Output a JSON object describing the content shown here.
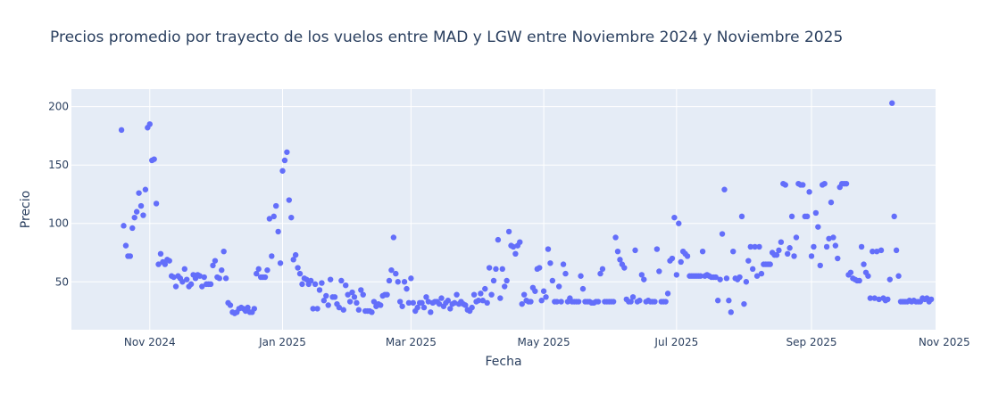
{
  "chart_data": {
    "type": "scatter",
    "title": "Precios promedio por trayecto de los vuelos entre MAD y LGW entre Noviembre 2024 y Noviembre 2025",
    "xlabel": "Fecha",
    "ylabel": "Precio",
    "xlim": [
      "2024-09-26",
      "2025-10-28"
    ],
    "ylim": [
      9,
      215
    ],
    "grid": true,
    "x_ticks": [
      {
        "date": "2024-11-01",
        "label": "Nov 2024"
      },
      {
        "date": "2025-01-01",
        "label": "Jan 2025"
      },
      {
        "date": "2025-03-01",
        "label": "Mar 2025"
      },
      {
        "date": "2025-05-01",
        "label": "May 2025"
      },
      {
        "date": "2025-07-01",
        "label": "Jul 2025"
      },
      {
        "date": "2025-09-01",
        "label": "Sep 2025"
      },
      {
        "date": "2025-11-01",
        "label": "Nov 2025"
      }
    ],
    "y_ticks": [
      50,
      100,
      150,
      200
    ],
    "marker_color": "#636efa",
    "points": [
      [
        "2024-10-19",
        180
      ],
      [
        "2024-10-20",
        98
      ],
      [
        "2024-10-21",
        81
      ],
      [
        "2024-10-22",
        72
      ],
      [
        "2024-10-23",
        72
      ],
      [
        "2024-10-24",
        96
      ],
      [
        "2024-10-25",
        105
      ],
      [
        "2024-10-26",
        110
      ],
      [
        "2024-10-27",
        126
      ],
      [
        "2024-10-28",
        115
      ],
      [
        "2024-10-29",
        107
      ],
      [
        "2024-10-30",
        129
      ],
      [
        "2024-10-31",
        182
      ],
      [
        "2024-11-01",
        185
      ],
      [
        "2024-11-02",
        154
      ],
      [
        "2024-11-03",
        155
      ],
      [
        "2024-11-04",
        117
      ],
      [
        "2024-11-05",
        65
      ],
      [
        "2024-11-06",
        74
      ],
      [
        "2024-11-07",
        67
      ],
      [
        "2024-11-08",
        65
      ],
      [
        "2024-11-09",
        69
      ],
      [
        "2024-11-10",
        68
      ],
      [
        "2024-11-11",
        55
      ],
      [
        "2024-11-12",
        54
      ],
      [
        "2024-11-13",
        46
      ],
      [
        "2024-11-14",
        55
      ],
      [
        "2024-11-15",
        53
      ],
      [
        "2024-11-16",
        50
      ],
      [
        "2024-11-17",
        61
      ],
      [
        "2024-11-18",
        52
      ],
      [
        "2024-11-19",
        46
      ],
      [
        "2024-11-20",
        48
      ],
      [
        "2024-11-21",
        56
      ],
      [
        "2024-11-22",
        53
      ],
      [
        "2024-11-23",
        56
      ],
      [
        "2024-11-24",
        55
      ],
      [
        "2024-11-25",
        46
      ],
      [
        "2024-11-26",
        54
      ],
      [
        "2024-11-27",
        48
      ],
      [
        "2024-11-28",
        48
      ],
      [
        "2024-11-29",
        48
      ],
      [
        "2024-11-30",
        64
      ],
      [
        "2024-12-01",
        68
      ],
      [
        "2024-12-02",
        54
      ],
      [
        "2024-12-03",
        53
      ],
      [
        "2024-12-04",
        60
      ],
      [
        "2024-12-05",
        76
      ],
      [
        "2024-12-06",
        53
      ],
      [
        "2024-12-07",
        32
      ],
      [
        "2024-12-08",
        30
      ],
      [
        "2024-12-09",
        24
      ],
      [
        "2024-12-10",
        23
      ],
      [
        "2024-12-11",
        24
      ],
      [
        "2024-12-12",
        27
      ],
      [
        "2024-12-13",
        28
      ],
      [
        "2024-12-14",
        27
      ],
      [
        "2024-12-15",
        25
      ],
      [
        "2024-12-16",
        28
      ],
      [
        "2024-12-17",
        24
      ],
      [
        "2024-12-18",
        24
      ],
      [
        "2024-12-19",
        27
      ],
      [
        "2024-12-20",
        57
      ],
      [
        "2024-12-21",
        61
      ],
      [
        "2024-12-22",
        54
      ],
      [
        "2024-12-23",
        54
      ],
      [
        "2024-12-24",
        54
      ],
      [
        "2024-12-25",
        60
      ],
      [
        "2024-12-26",
        104
      ],
      [
        "2024-12-27",
        72
      ],
      [
        "2024-12-28",
        106
      ],
      [
        "2024-12-29",
        115
      ],
      [
        "2024-12-30",
        93
      ],
      [
        "2024-12-31",
        66
      ],
      [
        "2025-01-01",
        145
      ],
      [
        "2025-01-02",
        154
      ],
      [
        "2025-01-03",
        161
      ],
      [
        "2025-01-04",
        120
      ],
      [
        "2025-01-05",
        105
      ],
      [
        "2025-01-06",
        69
      ],
      [
        "2025-01-07",
        73
      ],
      [
        "2025-01-08",
        62
      ],
      [
        "2025-01-09",
        57
      ],
      [
        "2025-01-10",
        48
      ],
      [
        "2025-01-11",
        53
      ],
      [
        "2025-01-12",
        52
      ],
      [
        "2025-01-13",
        48
      ],
      [
        "2025-01-14",
        51
      ],
      [
        "2025-01-15",
        27
      ],
      [
        "2025-01-16",
        48
      ],
      [
        "2025-01-17",
        27
      ],
      [
        "2025-01-18",
        43
      ],
      [
        "2025-01-19",
        49
      ],
      [
        "2025-01-20",
        34
      ],
      [
        "2025-01-21",
        38
      ],
      [
        "2025-01-22",
        30
      ],
      [
        "2025-01-23",
        52
      ],
      [
        "2025-01-24",
        37
      ],
      [
        "2025-01-25",
        37
      ],
      [
        "2025-01-26",
        31
      ],
      [
        "2025-01-27",
        28
      ],
      [
        "2025-01-28",
        51
      ],
      [
        "2025-01-29",
        26
      ],
      [
        "2025-01-30",
        47
      ],
      [
        "2025-01-31",
        39
      ],
      [
        "2025-02-01",
        33
      ],
      [
        "2025-02-02",
        41
      ],
      [
        "2025-02-03",
        37
      ],
      [
        "2025-02-04",
        32
      ],
      [
        "2025-02-05",
        26
      ],
      [
        "2025-02-06",
        43
      ],
      [
        "2025-02-07",
        39
      ],
      [
        "2025-02-08",
        25
      ],
      [
        "2025-02-09",
        25
      ],
      [
        "2025-02-10",
        25
      ],
      [
        "2025-02-11",
        24
      ],
      [
        "2025-02-12",
        33
      ],
      [
        "2025-02-13",
        29
      ],
      [
        "2025-02-14",
        31
      ],
      [
        "2025-02-15",
        30
      ],
      [
        "2025-02-16",
        38
      ],
      [
        "2025-02-17",
        39
      ],
      [
        "2025-02-18",
        39
      ],
      [
        "2025-02-19",
        51
      ],
      [
        "2025-02-20",
        60
      ],
      [
        "2025-02-21",
        88
      ],
      [
        "2025-02-22",
        57
      ],
      [
        "2025-02-23",
        50
      ],
      [
        "2025-02-24",
        33
      ],
      [
        "2025-02-25",
        29
      ],
      [
        "2025-02-26",
        50
      ],
      [
        "2025-02-27",
        44
      ],
      [
        "2025-02-28",
        32
      ],
      [
        "2025-03-01",
        53
      ],
      [
        "2025-03-02",
        32
      ],
      [
        "2025-03-03",
        25
      ],
      [
        "2025-03-04",
        28
      ],
      [
        "2025-03-05",
        32
      ],
      [
        "2025-03-06",
        32
      ],
      [
        "2025-03-07",
        28
      ],
      [
        "2025-03-08",
        37
      ],
      [
        "2025-03-09",
        33
      ],
      [
        "2025-03-10",
        24
      ],
      [
        "2025-03-11",
        32
      ],
      [
        "2025-03-12",
        33
      ],
      [
        "2025-03-13",
        33
      ],
      [
        "2025-03-14",
        31
      ],
      [
        "2025-03-15",
        36
      ],
      [
        "2025-03-16",
        29
      ],
      [
        "2025-03-17",
        32
      ],
      [
        "2025-03-18",
        34
      ],
      [
        "2025-03-19",
        27
      ],
      [
        "2025-03-20",
        31
      ],
      [
        "2025-03-21",
        32
      ],
      [
        "2025-03-22",
        39
      ],
      [
        "2025-03-23",
        31
      ],
      [
        "2025-03-24",
        33
      ],
      [
        "2025-03-25",
        31
      ],
      [
        "2025-03-26",
        30
      ],
      [
        "2025-03-27",
        26
      ],
      [
        "2025-03-28",
        25
      ],
      [
        "2025-03-29",
        28
      ],
      [
        "2025-03-30",
        39
      ],
      [
        "2025-03-31",
        33
      ],
      [
        "2025-04-01",
        34
      ],
      [
        "2025-04-02",
        40
      ],
      [
        "2025-04-03",
        34
      ],
      [
        "2025-04-04",
        44
      ],
      [
        "2025-04-05",
        32
      ],
      [
        "2025-04-06",
        62
      ],
      [
        "2025-04-07",
        39
      ],
      [
        "2025-04-08",
        51
      ],
      [
        "2025-04-09",
        61
      ],
      [
        "2025-04-10",
        86
      ],
      [
        "2025-04-11",
        36
      ],
      [
        "2025-04-12",
        61
      ],
      [
        "2025-04-13",
        46
      ],
      [
        "2025-04-14",
        51
      ],
      [
        "2025-04-15",
        93
      ],
      [
        "2025-04-16",
        81
      ],
      [
        "2025-04-17",
        80
      ],
      [
        "2025-04-18",
        74
      ],
      [
        "2025-04-19",
        81
      ],
      [
        "2025-04-20",
        84
      ],
      [
        "2025-04-21",
        31
      ],
      [
        "2025-04-22",
        39
      ],
      [
        "2025-04-23",
        34
      ],
      [
        "2025-04-24",
        33
      ],
      [
        "2025-04-25",
        33
      ],
      [
        "2025-04-26",
        45
      ],
      [
        "2025-04-27",
        42
      ],
      [
        "2025-04-28",
        61
      ],
      [
        "2025-04-29",
        62
      ],
      [
        "2025-04-30",
        34
      ],
      [
        "2025-05-01",
        42
      ],
      [
        "2025-05-02",
        37
      ],
      [
        "2025-05-03",
        78
      ],
      [
        "2025-05-04",
        66
      ],
      [
        "2025-05-05",
        51
      ],
      [
        "2025-05-06",
        33
      ],
      [
        "2025-05-07",
        33
      ],
      [
        "2025-05-08",
        46
      ],
      [
        "2025-05-09",
        33
      ],
      [
        "2025-05-10",
        65
      ],
      [
        "2025-05-11",
        57
      ],
      [
        "2025-05-12",
        33
      ],
      [
        "2025-05-13",
        36
      ],
      [
        "2025-05-14",
        33
      ],
      [
        "2025-05-15",
        33
      ],
      [
        "2025-05-16",
        33
      ],
      [
        "2025-05-17",
        33
      ],
      [
        "2025-05-18",
        55
      ],
      [
        "2025-05-19",
        44
      ],
      [
        "2025-05-20",
        33
      ],
      [
        "2025-05-21",
        33
      ],
      [
        "2025-05-22",
        33
      ],
      [
        "2025-05-23",
        32
      ],
      [
        "2025-05-24",
        32
      ],
      [
        "2025-05-25",
        33
      ],
      [
        "2025-05-26",
        33
      ],
      [
        "2025-05-27",
        57
      ],
      [
        "2025-05-28",
        61
      ],
      [
        "2025-05-29",
        33
      ],
      [
        "2025-05-30",
        33
      ],
      [
        "2025-05-31",
        33
      ],
      [
        "2025-06-01",
        33
      ],
      [
        "2025-06-02",
        33
      ],
      [
        "2025-06-03",
        88
      ],
      [
        "2025-06-04",
        76
      ],
      [
        "2025-06-05",
        69
      ],
      [
        "2025-06-06",
        65
      ],
      [
        "2025-06-07",
        62
      ],
      [
        "2025-06-08",
        35
      ],
      [
        "2025-06-09",
        33
      ],
      [
        "2025-06-10",
        33
      ],
      [
        "2025-06-11",
        37
      ],
      [
        "2025-06-12",
        77
      ],
      [
        "2025-06-13",
        33
      ],
      [
        "2025-06-14",
        34
      ],
      [
        "2025-06-15",
        56
      ],
      [
        "2025-06-16",
        52
      ],
      [
        "2025-06-17",
        33
      ],
      [
        "2025-06-18",
        34
      ],
      [
        "2025-06-19",
        33
      ],
      [
        "2025-06-20",
        33
      ],
      [
        "2025-06-21",
        33
      ],
      [
        "2025-06-22",
        78
      ],
      [
        "2025-06-23",
        59
      ],
      [
        "2025-06-24",
        33
      ],
      [
        "2025-06-25",
        33
      ],
      [
        "2025-06-26",
        33
      ],
      [
        "2025-06-27",
        40
      ],
      [
        "2025-06-28",
        68
      ],
      [
        "2025-06-29",
        70
      ],
      [
        "2025-06-30",
        105
      ],
      [
        "2025-07-01",
        56
      ],
      [
        "2025-07-02",
        100
      ],
      [
        "2025-07-03",
        67
      ],
      [
        "2025-07-04",
        76
      ],
      [
        "2025-07-05",
        74
      ],
      [
        "2025-07-06",
        72
      ],
      [
        "2025-07-07",
        55
      ],
      [
        "2025-07-08",
        55
      ],
      [
        "2025-07-09",
        55
      ],
      [
        "2025-07-10",
        55
      ],
      [
        "2025-07-11",
        55
      ],
      [
        "2025-07-12",
        55
      ],
      [
        "2025-07-13",
        76
      ],
      [
        "2025-07-14",
        55
      ],
      [
        "2025-07-15",
        56
      ],
      [
        "2025-07-16",
        55
      ],
      [
        "2025-07-17",
        54
      ],
      [
        "2025-07-18",
        54
      ],
      [
        "2025-07-19",
        54
      ],
      [
        "2025-07-20",
        34
      ],
      [
        "2025-07-21",
        52
      ],
      [
        "2025-07-22",
        91
      ],
      [
        "2025-07-23",
        129
      ],
      [
        "2025-07-24",
        53
      ],
      [
        "2025-07-25",
        34
      ],
      [
        "2025-07-26",
        24
      ],
      [
        "2025-07-27",
        76
      ],
      [
        "2025-07-28",
        53
      ],
      [
        "2025-07-29",
        52
      ],
      [
        "2025-07-30",
        54
      ],
      [
        "2025-07-31",
        106
      ],
      [
        "2025-08-01",
        31
      ],
      [
        "2025-08-02",
        50
      ],
      [
        "2025-08-03",
        68
      ],
      [
        "2025-08-04",
        80
      ],
      [
        "2025-08-05",
        61
      ],
      [
        "2025-08-06",
        80
      ],
      [
        "2025-08-07",
        55
      ],
      [
        "2025-08-08",
        80
      ],
      [
        "2025-08-09",
        57
      ],
      [
        "2025-08-10",
        65
      ],
      [
        "2025-08-11",
        65
      ],
      [
        "2025-08-12",
        65
      ],
      [
        "2025-08-13",
        65
      ],
      [
        "2025-08-14",
        75
      ],
      [
        "2025-08-15",
        73
      ],
      [
        "2025-08-16",
        73
      ],
      [
        "2025-08-17",
        77
      ],
      [
        "2025-08-18",
        84
      ],
      [
        "2025-08-19",
        134
      ],
      [
        "2025-08-20",
        133
      ],
      [
        "2025-08-21",
        74
      ],
      [
        "2025-08-22",
        79
      ],
      [
        "2025-08-23",
        106
      ],
      [
        "2025-08-24",
        72
      ],
      [
        "2025-08-25",
        88
      ],
      [
        "2025-08-26",
        134
      ],
      [
        "2025-08-27",
        133
      ],
      [
        "2025-08-28",
        133
      ],
      [
        "2025-08-29",
        106
      ],
      [
        "2025-08-30",
        106
      ],
      [
        "2025-08-31",
        127
      ],
      [
        "2025-09-01",
        72
      ],
      [
        "2025-09-02",
        80
      ],
      [
        "2025-09-03",
        109
      ],
      [
        "2025-09-04",
        97
      ],
      [
        "2025-09-05",
        64
      ],
      [
        "2025-09-06",
        133
      ],
      [
        "2025-09-07",
        134
      ],
      [
        "2025-09-08",
        80
      ],
      [
        "2025-09-09",
        87
      ],
      [
        "2025-09-10",
        118
      ],
      [
        "2025-09-11",
        88
      ],
      [
        "2025-09-12",
        81
      ],
      [
        "2025-09-13",
        70
      ],
      [
        "2025-09-14",
        131
      ],
      [
        "2025-09-15",
        134
      ],
      [
        "2025-09-16",
        134
      ],
      [
        "2025-09-17",
        134
      ],
      [
        "2025-09-18",
        56
      ],
      [
        "2025-09-19",
        58
      ],
      [
        "2025-09-20",
        53
      ],
      [
        "2025-09-21",
        52
      ],
      [
        "2025-09-22",
        51
      ],
      [
        "2025-09-23",
        51
      ],
      [
        "2025-09-24",
        80
      ],
      [
        "2025-09-25",
        65
      ],
      [
        "2025-09-26",
        58
      ],
      [
        "2025-09-27",
        55
      ],
      [
        "2025-09-28",
        36
      ],
      [
        "2025-09-29",
        76
      ],
      [
        "2025-09-30",
        36
      ],
      [
        "2025-10-01",
        76
      ],
      [
        "2025-10-02",
        35
      ],
      [
        "2025-10-03",
        77
      ],
      [
        "2025-10-04",
        36
      ],
      [
        "2025-10-05",
        34
      ],
      [
        "2025-10-06",
        35
      ],
      [
        "2025-10-07",
        52
      ],
      [
        "2025-10-08",
        203
      ],
      [
        "2025-10-09",
        106
      ],
      [
        "2025-10-10",
        77
      ],
      [
        "2025-10-11",
        55
      ],
      [
        "2025-10-12",
        33
      ],
      [
        "2025-10-13",
        33
      ],
      [
        "2025-10-14",
        33
      ],
      [
        "2025-10-15",
        33
      ],
      [
        "2025-10-16",
        34
      ],
      [
        "2025-10-17",
        33
      ],
      [
        "2025-10-18",
        34
      ],
      [
        "2025-10-19",
        33
      ],
      [
        "2025-10-20",
        33
      ],
      [
        "2025-10-21",
        33
      ],
      [
        "2025-10-22",
        36
      ],
      [
        "2025-10-23",
        35
      ],
      [
        "2025-10-24",
        36
      ],
      [
        "2025-10-25",
        33
      ],
      [
        "2025-10-26",
        35
      ]
    ]
  }
}
